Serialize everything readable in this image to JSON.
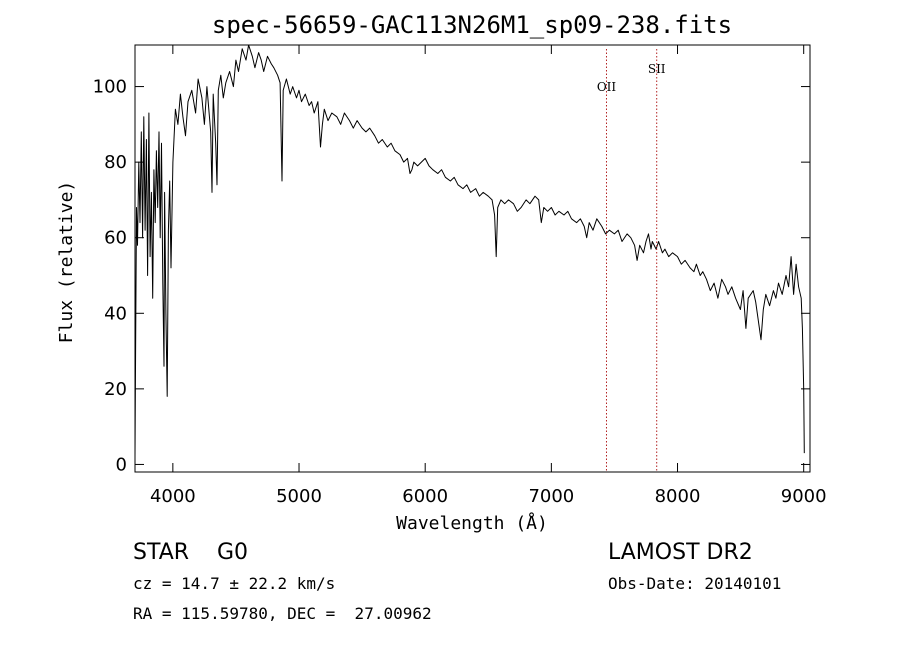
{
  "chart_data": {
    "type": "line",
    "title": "spec-56659-GAC113N26M1_sp09-238.fits",
    "xlabel": "Wavelength (Å)",
    "ylabel": "Flux (relative)",
    "xlim": [
      3700,
      9050
    ],
    "ylim": [
      -2,
      111
    ],
    "x_ticks": [
      4000,
      5000,
      6000,
      7000,
      8000,
      9000
    ],
    "y_ticks": [
      0,
      20,
      40,
      60,
      80,
      100
    ],
    "grid": false,
    "series": [
      {
        "color": "#000000",
        "points": [
          [
            3700,
            2
          ],
          [
            3705,
            30
          ],
          [
            3712,
            68
          ],
          [
            3720,
            58
          ],
          [
            3730,
            80
          ],
          [
            3740,
            64
          ],
          [
            3750,
            88
          ],
          [
            3760,
            60
          ],
          [
            3770,
            92
          ],
          [
            3780,
            62
          ],
          [
            3790,
            86
          ],
          [
            3800,
            50
          ],
          [
            3810,
            93
          ],
          [
            3820,
            55
          ],
          [
            3830,
            72
          ],
          [
            3840,
            44
          ],
          [
            3850,
            78
          ],
          [
            3860,
            64
          ],
          [
            3870,
            83
          ],
          [
            3880,
            68
          ],
          [
            3890,
            88
          ],
          [
            3900,
            60
          ],
          [
            3910,
            85
          ],
          [
            3920,
            48
          ],
          [
            3930,
            26
          ],
          [
            3935,
            72
          ],
          [
            3945,
            40
          ],
          [
            3955,
            18
          ],
          [
            3965,
            62
          ],
          [
            3975,
            75
          ],
          [
            3985,
            52
          ],
          [
            4000,
            80
          ],
          [
            4020,
            94
          ],
          [
            4040,
            90
          ],
          [
            4060,
            98
          ],
          [
            4080,
            92
          ],
          [
            4100,
            87
          ],
          [
            4120,
            96
          ],
          [
            4150,
            99
          ],
          [
            4180,
            93
          ],
          [
            4200,
            102
          ],
          [
            4230,
            97
          ],
          [
            4250,
            90
          ],
          [
            4270,
            100
          ],
          [
            4300,
            88
          ],
          [
            4310,
            72
          ],
          [
            4320,
            98
          ],
          [
            4340,
            85
          ],
          [
            4350,
            74
          ],
          [
            4360,
            99
          ],
          [
            4380,
            103
          ],
          [
            4400,
            97
          ],
          [
            4420,
            101
          ],
          [
            4450,
            104
          ],
          [
            4480,
            100
          ],
          [
            4500,
            107
          ],
          [
            4520,
            104
          ],
          [
            4550,
            110
          ],
          [
            4580,
            107
          ],
          [
            4600,
            111
          ],
          [
            4630,
            108
          ],
          [
            4650,
            105
          ],
          [
            4680,
            109
          ],
          [
            4700,
            107
          ],
          [
            4720,
            104
          ],
          [
            4750,
            108
          ],
          [
            4780,
            106
          ],
          [
            4800,
            105
          ],
          [
            4830,
            103
          ],
          [
            4850,
            101
          ],
          [
            4865,
            75
          ],
          [
            4875,
            99
          ],
          [
            4900,
            102
          ],
          [
            4930,
            98
          ],
          [
            4950,
            100
          ],
          [
            4980,
            97
          ],
          [
            5000,
            99
          ],
          [
            5020,
            96
          ],
          [
            5050,
            98
          ],
          [
            5080,
            95
          ],
          [
            5100,
            96
          ],
          [
            5120,
            93
          ],
          [
            5150,
            96
          ],
          [
            5170,
            84
          ],
          [
            5185,
            90
          ],
          [
            5200,
            94
          ],
          [
            5230,
            91
          ],
          [
            5260,
            93
          ],
          [
            5300,
            92
          ],
          [
            5330,
            90
          ],
          [
            5360,
            93
          ],
          [
            5400,
            91
          ],
          [
            5430,
            89
          ],
          [
            5460,
            91
          ],
          [
            5500,
            89
          ],
          [
            5530,
            88
          ],
          [
            5560,
            89
          ],
          [
            5600,
            87
          ],
          [
            5630,
            85
          ],
          [
            5660,
            86
          ],
          [
            5700,
            84
          ],
          [
            5730,
            85
          ],
          [
            5760,
            83
          ],
          [
            5800,
            82
          ],
          [
            5830,
            80
          ],
          [
            5860,
            81
          ],
          [
            5880,
            77
          ],
          [
            5895,
            78
          ],
          [
            5910,
            80
          ],
          [
            5940,
            79
          ],
          [
            5970,
            80
          ],
          [
            6000,
            81
          ],
          [
            6030,
            79
          ],
          [
            6060,
            78
          ],
          [
            6100,
            77
          ],
          [
            6130,
            78
          ],
          [
            6160,
            76
          ],
          [
            6200,
            75
          ],
          [
            6230,
            76
          ],
          [
            6260,
            74
          ],
          [
            6300,
            73
          ],
          [
            6330,
            74
          ],
          [
            6360,
            72
          ],
          [
            6400,
            73
          ],
          [
            6430,
            71
          ],
          [
            6460,
            72
          ],
          [
            6500,
            71
          ],
          [
            6530,
            70
          ],
          [
            6550,
            66
          ],
          [
            6563,
            55
          ],
          [
            6575,
            68
          ],
          [
            6600,
            70
          ],
          [
            6630,
            69
          ],
          [
            6660,
            70
          ],
          [
            6700,
            69
          ],
          [
            6730,
            67
          ],
          [
            6760,
            68
          ],
          [
            6800,
            70
          ],
          [
            6830,
            69
          ],
          [
            6870,
            71
          ],
          [
            6900,
            70
          ],
          [
            6920,
            64
          ],
          [
            6940,
            68
          ],
          [
            6970,
            67
          ],
          [
            7000,
            68
          ],
          [
            7030,
            66
          ],
          [
            7060,
            67
          ],
          [
            7100,
            66
          ],
          [
            7130,
            67
          ],
          [
            7160,
            65
          ],
          [
            7200,
            64
          ],
          [
            7230,
            65
          ],
          [
            7260,
            63
          ],
          [
            7280,
            60
          ],
          [
            7300,
            64
          ],
          [
            7330,
            62
          ],
          [
            7360,
            65
          ],
          [
            7400,
            63
          ],
          [
            7430,
            61
          ],
          [
            7460,
            62
          ],
          [
            7500,
            61
          ],
          [
            7530,
            62
          ],
          [
            7560,
            59
          ],
          [
            7600,
            61
          ],
          [
            7630,
            60
          ],
          [
            7660,
            58
          ],
          [
            7680,
            54
          ],
          [
            7700,
            58
          ],
          [
            7730,
            56
          ],
          [
            7750,
            59
          ],
          [
            7770,
            61
          ],
          [
            7790,
            57
          ],
          [
            7800,
            59
          ],
          [
            7830,
            57
          ],
          [
            7850,
            59
          ],
          [
            7880,
            56
          ],
          [
            7900,
            57
          ],
          [
            7930,
            55
          ],
          [
            7960,
            56
          ],
          [
            8000,
            55
          ],
          [
            8030,
            53
          ],
          [
            8060,
            54
          ],
          [
            8100,
            52
          ],
          [
            8130,
            51
          ],
          [
            8150,
            53
          ],
          [
            8180,
            50
          ],
          [
            8200,
            51
          ],
          [
            8230,
            49
          ],
          [
            8260,
            46
          ],
          [
            8290,
            48
          ],
          [
            8320,
            44
          ],
          [
            8350,
            49
          ],
          [
            8380,
            47
          ],
          [
            8400,
            45
          ],
          [
            8430,
            47
          ],
          [
            8460,
            44
          ],
          [
            8498,
            41
          ],
          [
            8520,
            46
          ],
          [
            8542,
            36
          ],
          [
            8560,
            44
          ],
          [
            8600,
            46
          ],
          [
            8620,
            43
          ],
          [
            8662,
            33
          ],
          [
            8680,
            41
          ],
          [
            8700,
            45
          ],
          [
            8730,
            42
          ],
          [
            8760,
            46
          ],
          [
            8780,
            44
          ],
          [
            8800,
            48
          ],
          [
            8830,
            45
          ],
          [
            8860,
            50
          ],
          [
            8880,
            47
          ],
          [
            8900,
            55
          ],
          [
            8920,
            45
          ],
          [
            8940,
            53
          ],
          [
            8960,
            47
          ],
          [
            8980,
            44
          ],
          [
            8990,
            36
          ],
          [
            9000,
            20
          ],
          [
            9005,
            3
          ]
        ]
      }
    ],
    "lines": [
      {
        "label": "OII",
        "x": 7437
      },
      {
        "label": "SII",
        "x": 7835
      }
    ]
  },
  "info": {
    "object_class": "STAR    G0",
    "survey": "LAMOST DR2",
    "cz": "cz = 14.7 ± 22.2 km/s",
    "obs_date": "Obs-Date: 20140101",
    "coords": "RA = 115.59780, DEC =  27.00962"
  }
}
